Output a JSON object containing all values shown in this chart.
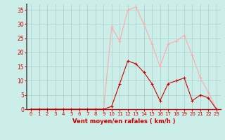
{
  "x": [
    0,
    1,
    2,
    3,
    4,
    5,
    6,
    7,
    8,
    9,
    10,
    11,
    12,
    13,
    14,
    15,
    16,
    17,
    18,
    19,
    20,
    21,
    22,
    23
  ],
  "wind_avg": [
    0,
    0,
    0,
    0,
    0,
    0,
    0,
    0,
    0,
    0,
    1,
    9,
    17,
    16,
    13,
    9,
    3,
    9,
    10,
    11,
    3,
    5,
    4,
    0
  ],
  "wind_gust": [
    0,
    0,
    0,
    0,
    0,
    0,
    0,
    0,
    0,
    0,
    29,
    24,
    35,
    36,
    30,
    23,
    15,
    23,
    24,
    26,
    19,
    11,
    6,
    0
  ],
  "color_avg": "#cc0000",
  "color_gust": "#ffaaaa",
  "bg_color": "#cceee8",
  "grid_color": "#aacccc",
  "xlabel": "Vent moyen/en rafales ( km/h )",
  "xlabel_color": "#cc0000",
  "tick_color": "#cc0000",
  "ylim": [
    0,
    37
  ],
  "yticks": [
    0,
    5,
    10,
    15,
    20,
    25,
    30,
    35
  ],
  "xlim": [
    -0.5,
    23.5
  ]
}
